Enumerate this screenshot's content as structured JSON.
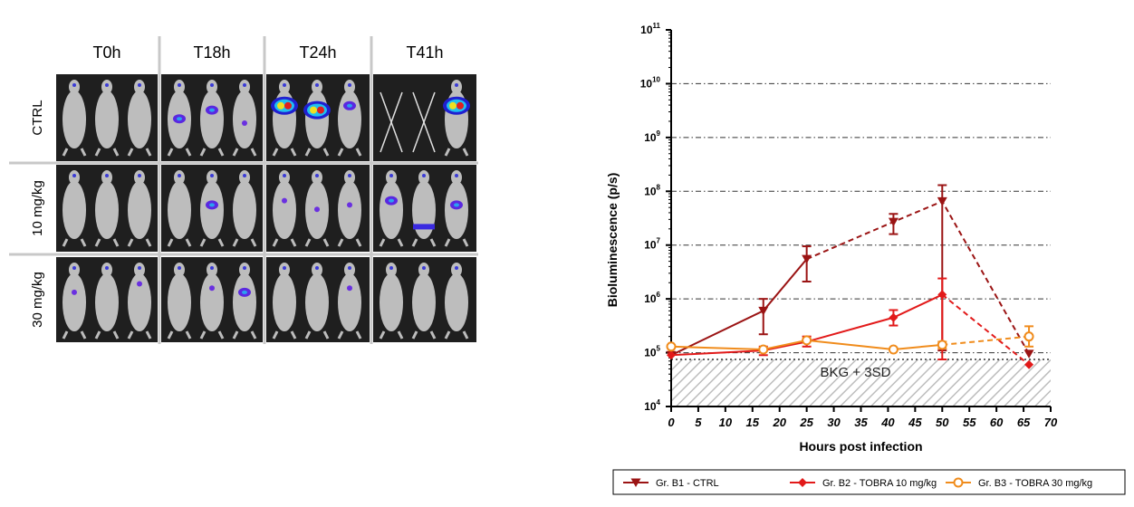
{
  "imaging_panel": {
    "time_points": [
      "T0h",
      "T18h",
      "T24h",
      "T41h"
    ],
    "groups": [
      "CTRL",
      "10 mg/kg",
      "30 mg/kg"
    ],
    "colors": {
      "mouse": "#bdbdbd",
      "photo_bg": "#1f1f1f",
      "grid_line": "#c8c8c8"
    }
  },
  "chart_data": {
    "type": "line",
    "y_scale": "log",
    "xlabel": "Hours post infection",
    "ylabel": "Bioluminescence (p/s)",
    "xlim": [
      0,
      70
    ],
    "x_ticks": [
      0,
      5,
      10,
      15,
      20,
      25,
      30,
      35,
      40,
      45,
      50,
      55,
      60,
      65,
      70
    ],
    "ylim": [
      10000,
      100000000000
    ],
    "y_tick_exponents": [
      4,
      5,
      6,
      7,
      8,
      9,
      10,
      11
    ],
    "y_tick_base": "10",
    "grid": "dash-dot horizontal lines at each decade",
    "threshold": {
      "label": "BKG + 3SD",
      "value": 75000
    },
    "legend_position": "bottom",
    "series": [
      {
        "name": "Gr. B1 - CTRL",
        "color": "#9b1414",
        "marker": "triangle-down",
        "solid": [
          [
            0,
            90000
          ],
          [
            17,
            600000
          ],
          [
            25,
            5500000
          ]
        ],
        "dashed": [
          [
            25,
            5500000
          ],
          [
            41,
            27000000
          ],
          [
            50,
            65000000
          ],
          [
            66,
            95000
          ]
        ],
        "errors": [
          [
            17,
            220000,
            1000000
          ],
          [
            25,
            2100000,
            9500000
          ],
          [
            41,
            16000000,
            38000000
          ],
          [
            50,
            110000,
            130000000
          ]
        ]
      },
      {
        "name": "Gr. B2 - TOBRA 10 mg/kg",
        "color": "#e21a1a",
        "marker": "diamond",
        "solid": [
          [
            0,
            90000
          ],
          [
            17,
            110000
          ],
          [
            25,
            160000
          ],
          [
            41,
            450000
          ],
          [
            50,
            1200000
          ]
        ],
        "dashed": [
          [
            50,
            1200000
          ],
          [
            66,
            60000
          ]
        ],
        "errors": [
          [
            17,
            90000,
            130000
          ],
          [
            25,
            130000,
            200000
          ],
          [
            41,
            320000,
            620000
          ],
          [
            50,
            75000,
            2400000
          ]
        ]
      },
      {
        "name": "Gr. B3 - TOBRA 30 mg/kg",
        "color": "#f08c1c",
        "marker": "circle-open",
        "solid": [
          [
            0,
            130000
          ],
          [
            17,
            115000
          ],
          [
            25,
            170000
          ],
          [
            41,
            115000
          ],
          [
            50,
            140000
          ]
        ],
        "dashed": [
          [
            50,
            140000
          ],
          [
            66,
            200000
          ]
        ],
        "errors": [
          [
            50,
            120000,
            160000
          ],
          [
            66,
            130000,
            310000
          ]
        ]
      }
    ]
  }
}
